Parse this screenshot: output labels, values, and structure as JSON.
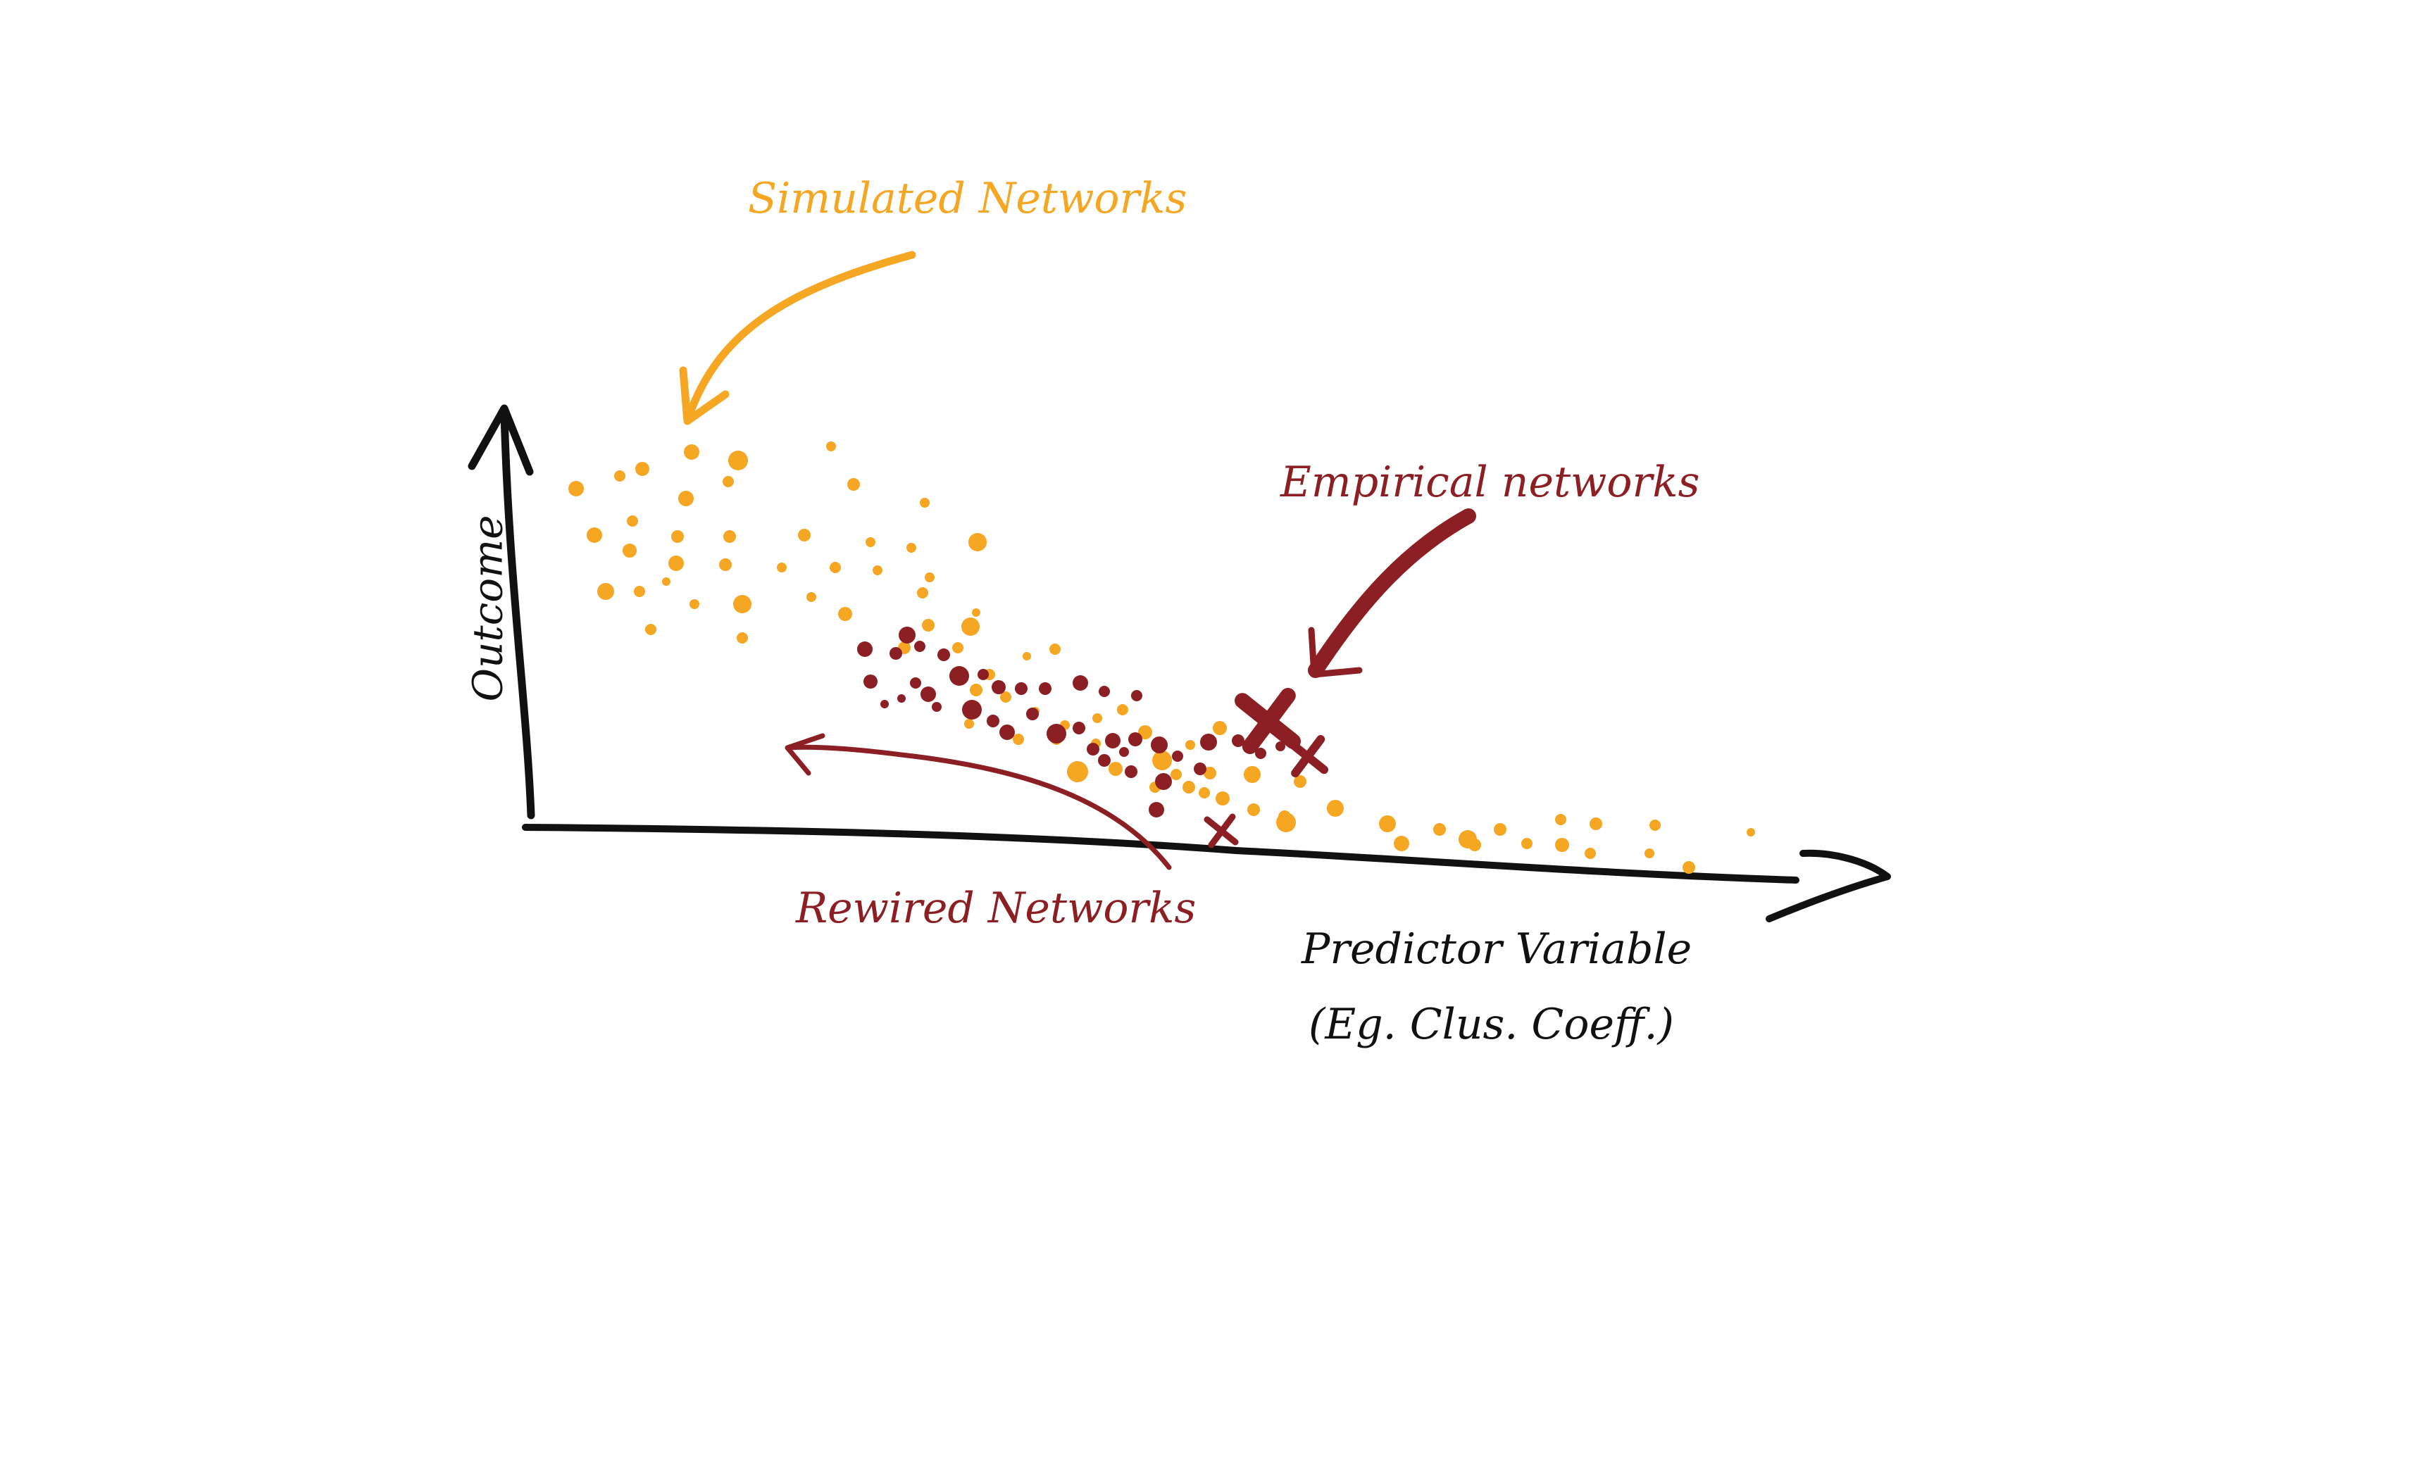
{
  "labels": {
    "simulated": "Simulated Networks",
    "empirical": "Empirical networks",
    "rewired": "Rewired Networks",
    "x_axis": "Predictor Variable",
    "x_axis_sub": "(Eg. Clus. Coeff.)",
    "y_axis": "Outcome"
  },
  "colors": {
    "simulated": "#f5a623",
    "empirical": "#8b1f24",
    "rewired": "#8b1f24",
    "axis": "#111111"
  },
  "groups": {
    "simulated": {
      "marker": "dot"
    },
    "rewired": {
      "marker": "dot"
    },
    "empirical": {
      "marker": "cross"
    }
  }
}
